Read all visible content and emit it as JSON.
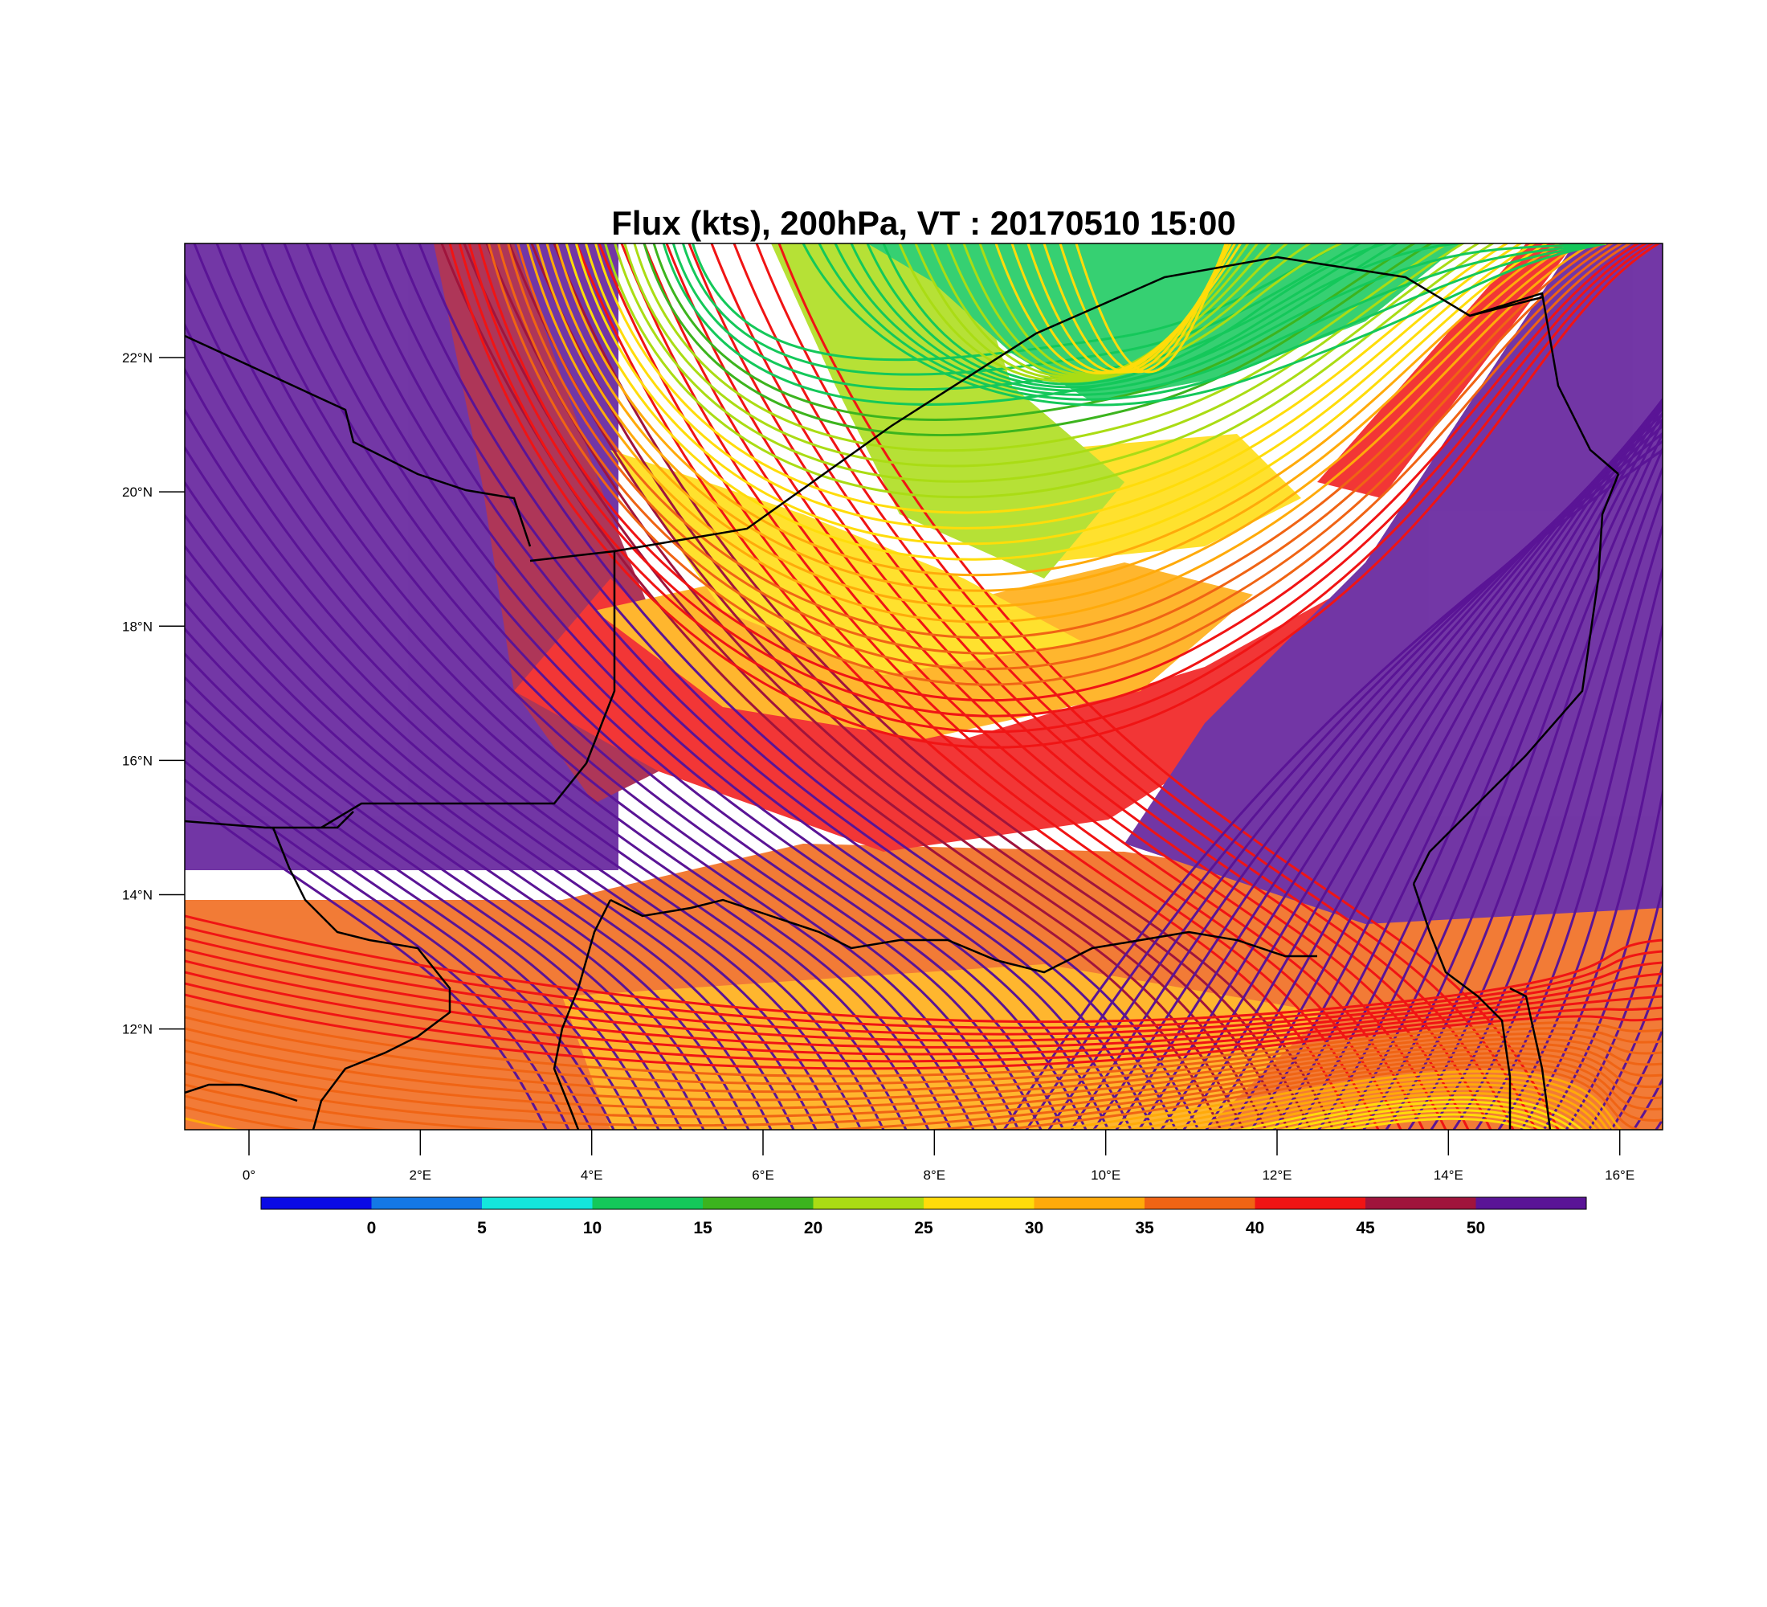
{
  "title": "Flux (kts), 200hPa, VT : 20170510  15:00",
  "map": {
    "lon_range": [
      -0.75,
      16.5
    ],
    "lat_range": [
      10.5,
      23.7
    ],
    "lat_ticks": [
      {
        "value": 22,
        "label": "22°N"
      },
      {
        "value": 20,
        "label": "20°N"
      },
      {
        "value": 18,
        "label": "18°N"
      },
      {
        "value": 16,
        "label": "16°N"
      },
      {
        "value": 14,
        "label": "14°N"
      },
      {
        "value": 12,
        "label": "12°N"
      }
    ],
    "lon_ticks": [
      {
        "value": 0,
        "label": "0°"
      },
      {
        "value": 2,
        "label": "2°E"
      },
      {
        "value": 4,
        "label": "4°E"
      },
      {
        "value": 6,
        "label": "6°E"
      },
      {
        "value": 8,
        "label": "8°E"
      },
      {
        "value": 10,
        "label": "10°E"
      },
      {
        "value": 12,
        "label": "12°E"
      },
      {
        "value": 14,
        "label": "14°E"
      },
      {
        "value": 16,
        "label": "16°E"
      }
    ]
  },
  "colorbar": {
    "colors": [
      "#0a0ae6",
      "#1478e6",
      "#14e6dc",
      "#14c85a",
      "#3cb41e",
      "#aadc14",
      "#ffdc0a",
      "#ffaa0a",
      "#f06414",
      "#f01414",
      "#a0143c",
      "#5a1496"
    ],
    "labels": [
      "0",
      "5",
      "10",
      "15",
      "20",
      "25",
      "30",
      "35",
      "40",
      "45",
      "50"
    ]
  }
}
